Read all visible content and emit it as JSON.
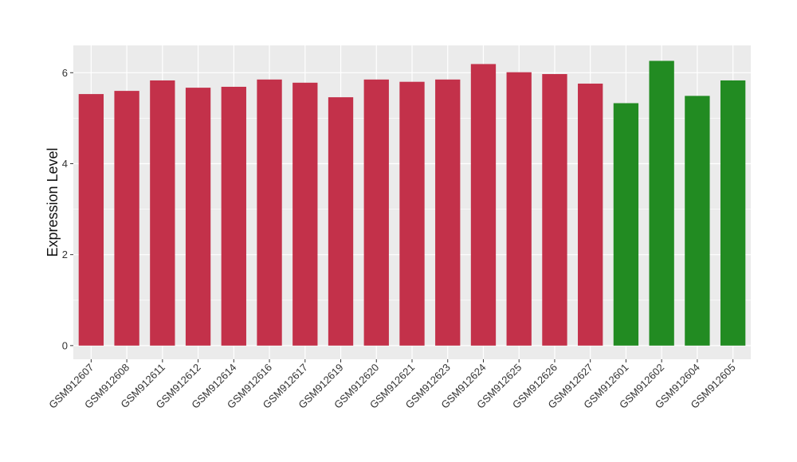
{
  "chart_data": {
    "type": "bar",
    "title": "",
    "xlabel": "",
    "ylabel": "Expression Level",
    "ylim": [
      -0.3,
      6.6
    ],
    "yticks": [
      0,
      2,
      4,
      6
    ],
    "grid": true,
    "colors": {
      "panel": "#ebebeb",
      "grid": "#ffffff"
    },
    "categories": [
      "GSM912607",
      "GSM912608",
      "GSM912611",
      "GSM912612",
      "GSM912614",
      "GSM912616",
      "GSM912617",
      "GSM912619",
      "GSM912620",
      "GSM912621",
      "GSM912623",
      "GSM912624",
      "GSM912625",
      "GSM912626",
      "GSM912627",
      "GSM912601",
      "GSM912602",
      "GSM912604",
      "GSM912605"
    ],
    "values": [
      5.53,
      5.6,
      5.83,
      5.67,
      5.69,
      5.85,
      5.78,
      5.46,
      5.85,
      5.8,
      5.85,
      6.19,
      6.01,
      5.97,
      5.76,
      5.33,
      6.26,
      5.49,
      5.83
    ],
    "bar_colors": [
      "#c3314a",
      "#c3314a",
      "#c3314a",
      "#c3314a",
      "#c3314a",
      "#c3314a",
      "#c3314a",
      "#c3314a",
      "#c3314a",
      "#c3314a",
      "#c3314a",
      "#c3314a",
      "#c3314a",
      "#c3314a",
      "#c3314a",
      "#228b22",
      "#228b22",
      "#228b22",
      "#228b22"
    ]
  }
}
